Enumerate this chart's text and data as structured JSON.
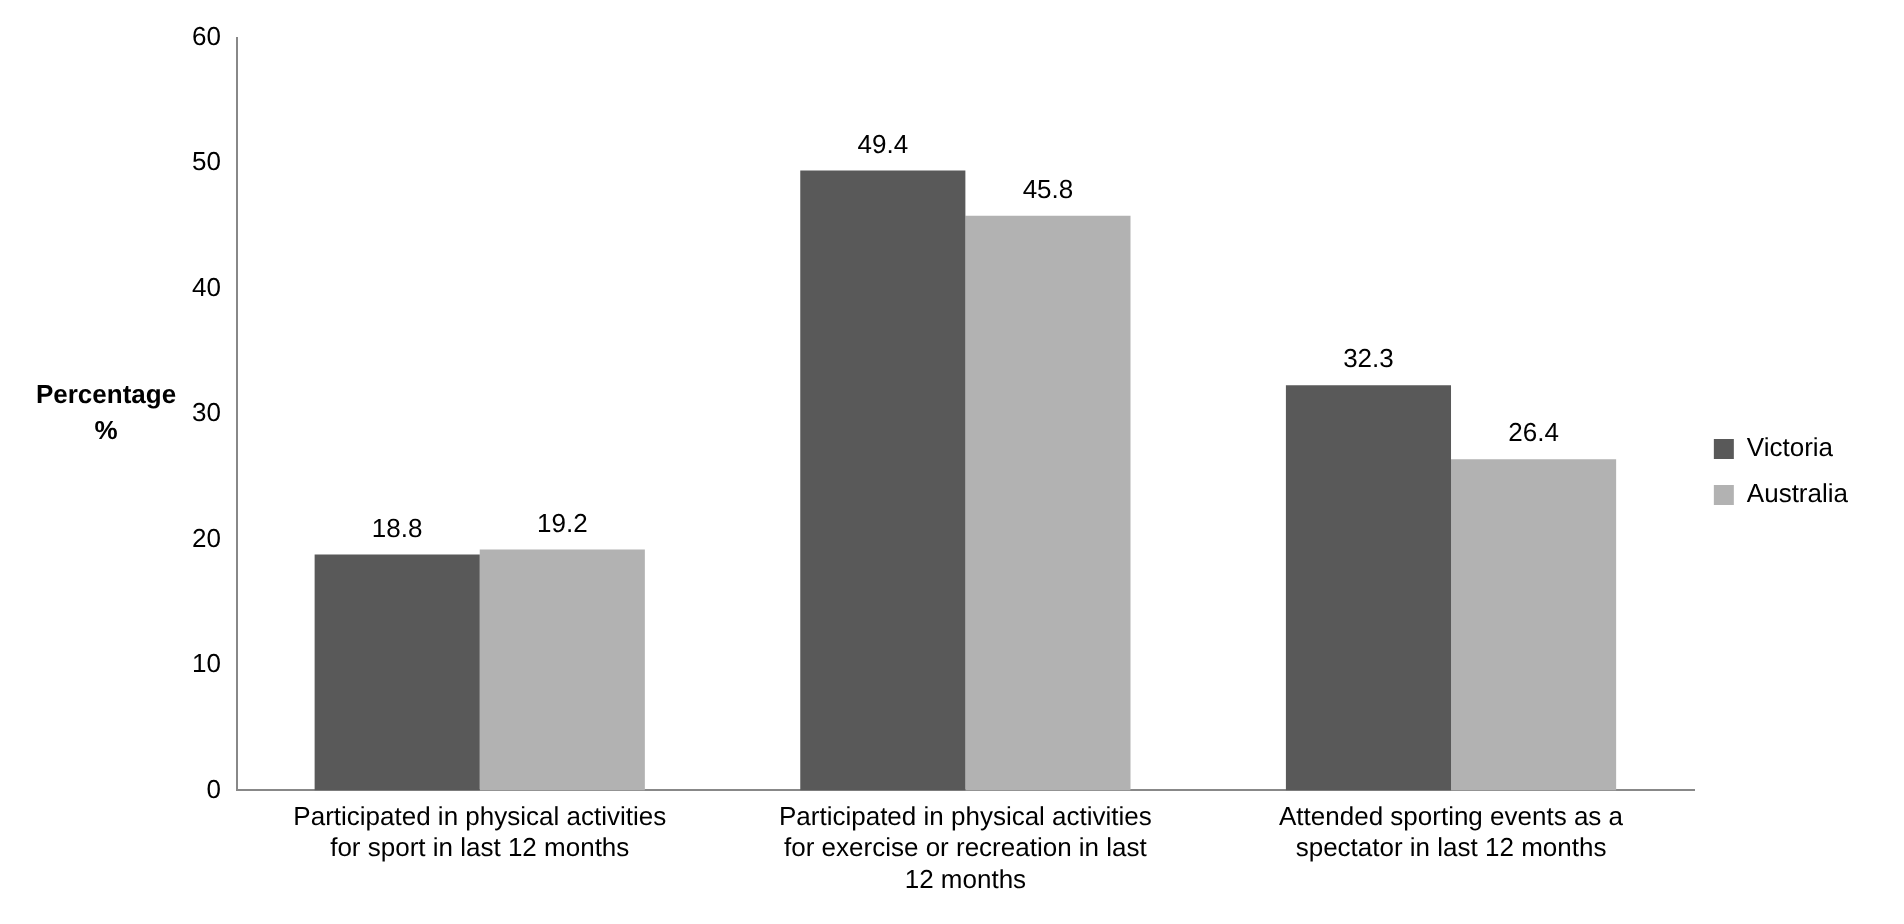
{
  "chart_data": {
    "type": "bar",
    "ylabel": "Percentage %",
    "categories": [
      "Participated in physical activities for sport in last 12 months",
      "Participated in physical activities for exercise or recreation in last 12 months",
      "Attended sporting events as a spectator in last 12 months"
    ],
    "series": [
      {
        "name": "Victoria",
        "color": "#595959",
        "values": [
          18.8,
          49.4,
          32.3
        ]
      },
      {
        "name": "Australia",
        "color": "#b2b2b2",
        "values": [
          19.2,
          45.8,
          26.4
        ]
      }
    ],
    "ylim": [
      0,
      60
    ],
    "yticks": [
      0,
      10,
      20,
      30,
      40,
      50,
      60
    ],
    "grid": false,
    "legend": "right",
    "data_labels": true
  }
}
